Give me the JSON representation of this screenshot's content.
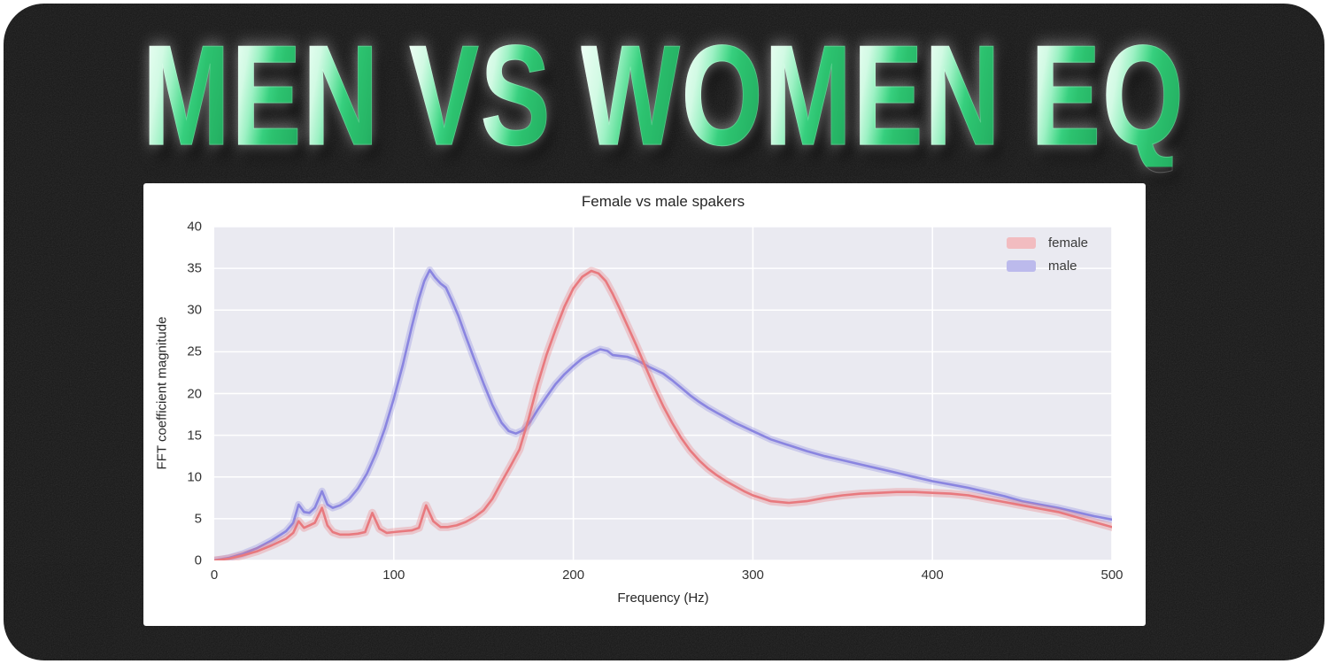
{
  "header": {
    "title": "MEN VS WOMEN EQ",
    "accent_green": "#2cc26f"
  },
  "colors": {
    "page_background": "#161616",
    "card_background": "#ffffff",
    "plot_background": "#eaeaf1",
    "gridline": "#ffffff",
    "tick_text": "#333333"
  },
  "chart_data": {
    "type": "line",
    "title": "Female vs male spakers",
    "xlabel": "Frequency (Hz)",
    "ylabel": "FFT coefficient magnitude",
    "xlim": [
      0,
      500
    ],
    "ylim": [
      0,
      40
    ],
    "x_ticks": [
      0,
      100,
      200,
      300,
      400,
      500
    ],
    "y_ticks": [
      0,
      5,
      10,
      15,
      20,
      25,
      30,
      35,
      40
    ],
    "grid": true,
    "legend_position": "upper right",
    "background": "#eaeaf1",
    "series": [
      {
        "name": "male",
        "color": "#8a85e0",
        "band_color": "rgba(138,133,224,0.32)",
        "band_stroke": 8,
        "swatch_color": "#bcbaec",
        "points": [
          [
            0,
            0
          ],
          [
            8,
            0.3
          ],
          [
            16,
            0.8
          ],
          [
            24,
            1.5
          ],
          [
            32,
            2.4
          ],
          [
            40,
            3.5
          ],
          [
            44,
            4.5
          ],
          [
            47,
            6.7
          ],
          [
            50,
            5.8
          ],
          [
            53,
            5.7
          ],
          [
            56,
            6.3
          ],
          [
            60,
            8.3
          ],
          [
            63,
            6.7
          ],
          [
            66,
            6.3
          ],
          [
            70,
            6.6
          ],
          [
            75,
            7.3
          ],
          [
            80,
            8.6
          ],
          [
            85,
            10.4
          ],
          [
            90,
            12.8
          ],
          [
            95,
            15.8
          ],
          [
            100,
            19.4
          ],
          [
            105,
            23.4
          ],
          [
            110,
            28.0
          ],
          [
            114,
            31.4
          ],
          [
            117,
            33.5
          ],
          [
            120,
            34.8
          ],
          [
            123,
            33.9
          ],
          [
            126,
            33.2
          ],
          [
            129,
            32.7
          ],
          [
            132,
            31.3
          ],
          [
            136,
            29.3
          ],
          [
            140,
            26.9
          ],
          [
            145,
            24.0
          ],
          [
            150,
            21.2
          ],
          [
            155,
            18.6
          ],
          [
            160,
            16.5
          ],
          [
            164,
            15.5
          ],
          [
            168,
            15.2
          ],
          [
            172,
            15.6
          ],
          [
            176,
            16.6
          ],
          [
            180,
            18.0
          ],
          [
            185,
            19.6
          ],
          [
            190,
            21.1
          ],
          [
            195,
            22.3
          ],
          [
            200,
            23.3
          ],
          [
            205,
            24.2
          ],
          [
            210,
            24.8
          ],
          [
            215,
            25.3
          ],
          [
            219,
            25.1
          ],
          [
            222,
            24.6
          ],
          [
            226,
            24.5
          ],
          [
            230,
            24.4
          ],
          [
            234,
            24.1
          ],
          [
            238,
            23.7
          ],
          [
            242,
            23.2
          ],
          [
            246,
            22.8
          ],
          [
            250,
            22.4
          ],
          [
            255,
            21.6
          ],
          [
            260,
            20.7
          ],
          [
            265,
            19.8
          ],
          [
            270,
            19.0
          ],
          [
            275,
            18.3
          ],
          [
            280,
            17.7
          ],
          [
            285,
            17.1
          ],
          [
            290,
            16.5
          ],
          [
            295,
            16.0
          ],
          [
            300,
            15.5
          ],
          [
            310,
            14.5
          ],
          [
            320,
            13.8
          ],
          [
            330,
            13.1
          ],
          [
            340,
            12.5
          ],
          [
            350,
            12.0
          ],
          [
            360,
            11.5
          ],
          [
            370,
            11.0
          ],
          [
            380,
            10.5
          ],
          [
            390,
            10.0
          ],
          [
            400,
            9.5
          ],
          [
            410,
            9.1
          ],
          [
            420,
            8.7
          ],
          [
            430,
            8.2
          ],
          [
            440,
            7.7
          ],
          [
            450,
            7.1
          ],
          [
            460,
            6.7
          ],
          [
            470,
            6.3
          ],
          [
            480,
            5.8
          ],
          [
            490,
            5.3
          ],
          [
            500,
            4.9
          ]
        ]
      },
      {
        "name": "female",
        "color": "#e8797e",
        "band_color": "rgba(232,121,126,0.32)",
        "band_stroke": 9,
        "swatch_color": "#f2bcc0",
        "points": [
          [
            0,
            0
          ],
          [
            8,
            0.2
          ],
          [
            16,
            0.6
          ],
          [
            24,
            1.1
          ],
          [
            32,
            1.8
          ],
          [
            40,
            2.6
          ],
          [
            44,
            3.3
          ],
          [
            47,
            4.7
          ],
          [
            50,
            3.9
          ],
          [
            53,
            4.2
          ],
          [
            56,
            4.5
          ],
          [
            60,
            6.3
          ],
          [
            63,
            4.2
          ],
          [
            66,
            3.4
          ],
          [
            70,
            3.1
          ],
          [
            75,
            3.1
          ],
          [
            80,
            3.2
          ],
          [
            84,
            3.4
          ],
          [
            88,
            5.7
          ],
          [
            92,
            3.8
          ],
          [
            96,
            3.3
          ],
          [
            100,
            3.4
          ],
          [
            105,
            3.5
          ],
          [
            110,
            3.6
          ],
          [
            114,
            3.9
          ],
          [
            118,
            6.6
          ],
          [
            122,
            4.7
          ],
          [
            126,
            4.0
          ],
          [
            130,
            4.0
          ],
          [
            135,
            4.2
          ],
          [
            140,
            4.6
          ],
          [
            145,
            5.2
          ],
          [
            150,
            6.0
          ],
          [
            155,
            7.4
          ],
          [
            160,
            9.4
          ],
          [
            165,
            11.3
          ],
          [
            170,
            13.3
          ],
          [
            175,
            16.9
          ],
          [
            180,
            21.0
          ],
          [
            185,
            24.6
          ],
          [
            190,
            27.6
          ],
          [
            195,
            30.4
          ],
          [
            200,
            32.6
          ],
          [
            205,
            34.0
          ],
          [
            210,
            34.7
          ],
          [
            214,
            34.4
          ],
          [
            218,
            33.5
          ],
          [
            222,
            31.9
          ],
          [
            226,
            30.1
          ],
          [
            230,
            28.2
          ],
          [
            235,
            25.8
          ],
          [
            240,
            23.3
          ],
          [
            245,
            20.8
          ],
          [
            250,
            18.5
          ],
          [
            255,
            16.5
          ],
          [
            260,
            14.7
          ],
          [
            265,
            13.2
          ],
          [
            270,
            12.0
          ],
          [
            275,
            11.0
          ],
          [
            280,
            10.2
          ],
          [
            285,
            9.5
          ],
          [
            290,
            8.9
          ],
          [
            295,
            8.3
          ],
          [
            300,
            7.8
          ],
          [
            310,
            7.1
          ],
          [
            320,
            6.9
          ],
          [
            330,
            7.1
          ],
          [
            340,
            7.5
          ],
          [
            350,
            7.8
          ],
          [
            360,
            8.0
          ],
          [
            370,
            8.1
          ],
          [
            380,
            8.2
          ],
          [
            390,
            8.2
          ],
          [
            400,
            8.1
          ],
          [
            410,
            8.0
          ],
          [
            420,
            7.8
          ],
          [
            430,
            7.4
          ],
          [
            440,
            7.0
          ],
          [
            450,
            6.6
          ],
          [
            460,
            6.2
          ],
          [
            470,
            5.8
          ],
          [
            480,
            5.2
          ],
          [
            490,
            4.6
          ],
          [
            500,
            4.0
          ]
        ],
        "legend_order": [
          "female",
          "male"
        ]
      }
    ]
  }
}
